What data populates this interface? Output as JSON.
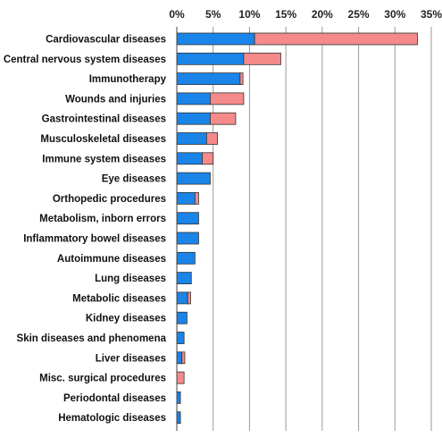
{
  "chart_data": {
    "type": "bar",
    "orientation": "horizontal",
    "stacked": true,
    "categories": [
      "Cardiovascular diseases",
      "Central nervous system diseases",
      "Immunotherapy",
      "Wounds and injuries",
      "Gastrointestinal diseases",
      "Musculoskeletal diseases",
      "Immune system diseases",
      "Eye diseases",
      "Orthopedic procedures",
      "Metabolism, inborn errors",
      "Inflammatory bowel diseases",
      "Autoimmune diseases",
      "Lung diseases",
      "Metabolic diseases",
      "Kidney diseases",
      "Skin diseases and phenomena",
      "Liver diseases",
      "Misc. surgical procedures",
      "Periodontal diseases",
      "Hematologic diseases"
    ],
    "series": [
      {
        "color": "#1a84e8",
        "values": [
          10.7,
          9.2,
          8.7,
          4.6,
          4.6,
          4.1,
          3.5,
          4.6,
          2.5,
          3.0,
          3.0,
          2.5,
          2.0,
          1.5,
          1.4,
          1.0,
          0.7,
          0.0,
          0.5,
          0.5
        ]
      },
      {
        "color": "#f58a8a",
        "values": [
          22.4,
          5.1,
          0.4,
          4.6,
          3.5,
          1.5,
          1.5,
          0.0,
          0.5,
          0.0,
          0.0,
          0.0,
          0.0,
          0.4,
          0.0,
          0.0,
          0.4,
          1.0,
          0.0,
          0.0
        ]
      }
    ],
    "x_ticks": [
      "0%",
      "5%",
      "10%",
      "15%",
      "20%",
      "25%",
      "30%",
      "35%"
    ],
    "xlim": [
      0,
      35
    ],
    "x_axis_position": "top",
    "grid": true,
    "legend": "none"
  }
}
